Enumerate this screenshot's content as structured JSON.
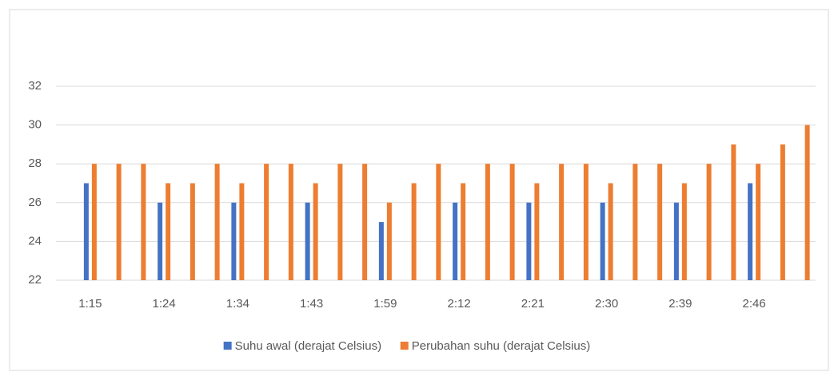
{
  "chart_data": {
    "type": "bar",
    "categories": [
      "1:15",
      null,
      null,
      "1:24",
      null,
      null,
      "1:34",
      null,
      null,
      "1:43",
      null,
      null,
      "1:59",
      null,
      null,
      "2:12",
      null,
      null,
      "2:21",
      null,
      null,
      "2:30",
      null,
      null,
      "2:39",
      null,
      null,
      "2:46",
      null,
      null
    ],
    "series": [
      {
        "name": "Suhu awal (derajat Celsius)",
        "color": "#4472c4",
        "values": [
          27,
          null,
          null,
          26,
          null,
          null,
          26,
          null,
          null,
          26,
          null,
          null,
          25,
          null,
          null,
          26,
          null,
          null,
          26,
          null,
          null,
          26,
          null,
          null,
          26,
          null,
          null,
          27,
          null,
          null
        ]
      },
      {
        "name": "Perubahan suhu (derajat Celsius)",
        "color": "#ed7d31",
        "values": [
          28,
          28,
          28,
          27,
          27,
          28,
          27,
          28,
          28,
          27,
          28,
          28,
          26,
          27,
          28,
          27,
          28,
          28,
          27,
          28,
          28,
          27,
          28,
          28,
          27,
          28,
          29,
          28,
          29,
          30
        ]
      }
    ],
    "ylim": [
      22,
      32
    ],
    "yticks": [
      22,
      24,
      26,
      28,
      30,
      32
    ],
    "grid": true,
    "legend": "bottom"
  }
}
